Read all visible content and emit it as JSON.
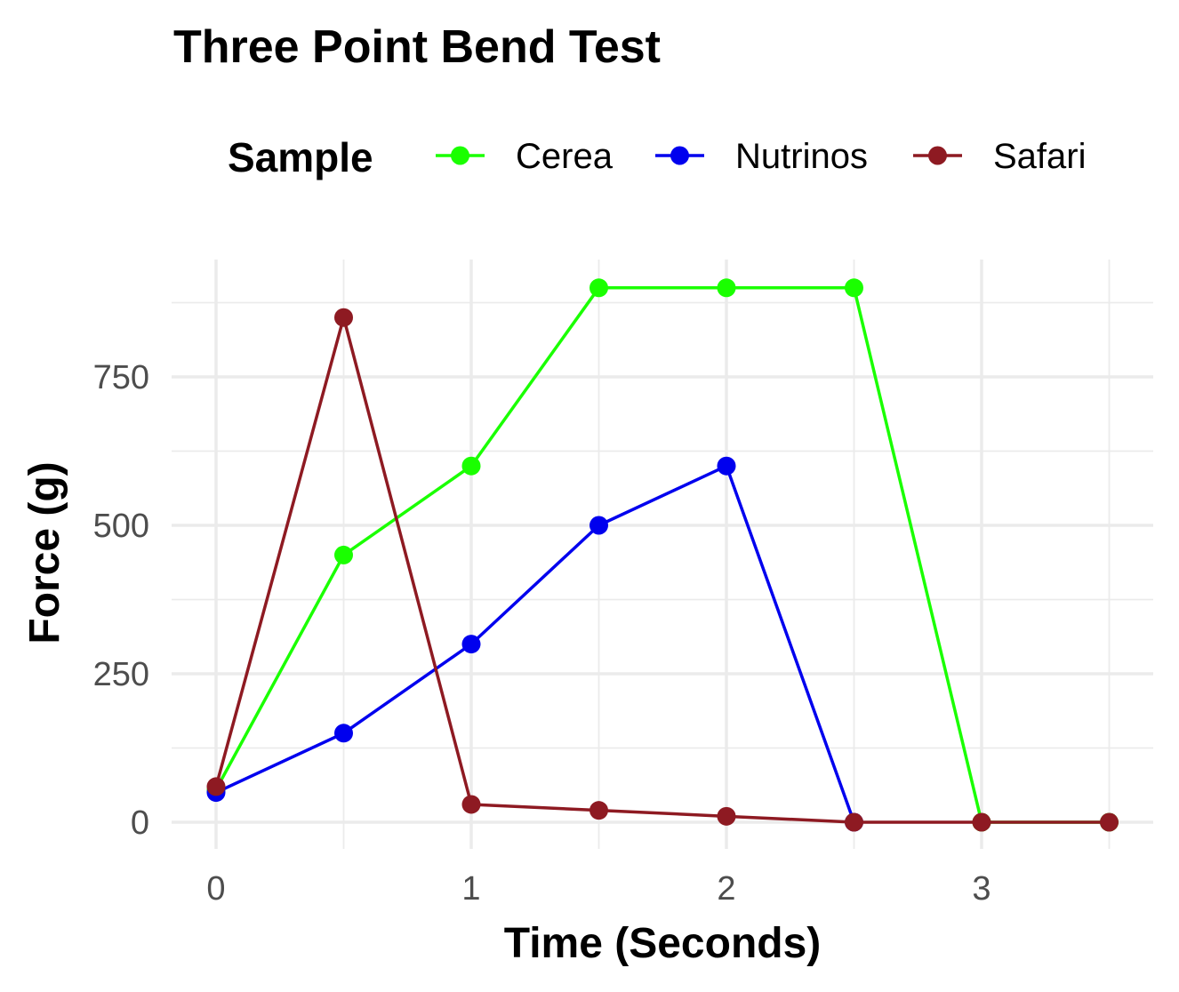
{
  "chart_data": {
    "type": "line",
    "title": "Three Point Bend Test",
    "xlabel": "Time (Seconds)",
    "ylabel": "Force (g)",
    "xlim": [
      0,
      3.5
    ],
    "ylim": [
      0,
      900
    ],
    "x_ticks": [
      0,
      1,
      2,
      3
    ],
    "x_tick_labels": [
      "0",
      "1",
      "2",
      "3"
    ],
    "y_ticks": [
      0,
      250,
      500,
      750
    ],
    "y_tick_labels": [
      "0",
      "250",
      "500",
      "750"
    ],
    "grid": true,
    "legend": {
      "title": "Sample",
      "position": "top"
    },
    "series": [
      {
        "name": "Cerea",
        "color": "#1AFF00",
        "x": [
          0,
          0.5,
          1,
          1.5,
          2,
          2.5,
          3,
          3.5
        ],
        "y": [
          55,
          450,
          600,
          900,
          900,
          900,
          0,
          0
        ]
      },
      {
        "name": "Nutrinos",
        "color": "#0000EE",
        "x": [
          0,
          0.5,
          1,
          1.5,
          2,
          2.5
        ],
        "y": [
          50,
          150,
          300,
          500,
          600,
          0
        ]
      },
      {
        "name": "Safari",
        "color": "#8E1A22",
        "x": [
          0,
          0.5,
          1,
          1.5,
          2,
          2.5,
          3,
          3.5
        ],
        "y": [
          60,
          850,
          30,
          20,
          10,
          0,
          0,
          0
        ]
      }
    ]
  }
}
